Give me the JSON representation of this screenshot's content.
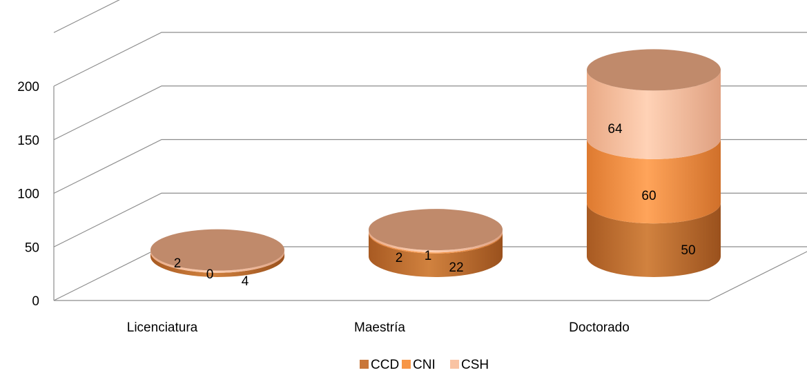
{
  "chart_data": {
    "type": "bar",
    "style": "3d-stacked-cylinder",
    "title": "",
    "xlabel": "",
    "ylabel": "",
    "categories": [
      "Licenciatura",
      "Maestría",
      "Doctorado"
    ],
    "series": [
      {
        "name": "CCD",
        "values": [
          4,
          22,
          50
        ],
        "color": "#c9773a"
      },
      {
        "name": "CNI",
        "values": [
          0,
          1,
          60
        ],
        "color": "#f79646"
      },
      {
        "name": "CSH",
        "values": [
          2,
          2,
          64
        ],
        "color": "#f9c3a3"
      }
    ],
    "ylim": [
      0,
      200
    ],
    "yticks": [
      "0",
      "50",
      "100",
      "150",
      "200"
    ],
    "grid": true,
    "legend": "bottom-center"
  }
}
